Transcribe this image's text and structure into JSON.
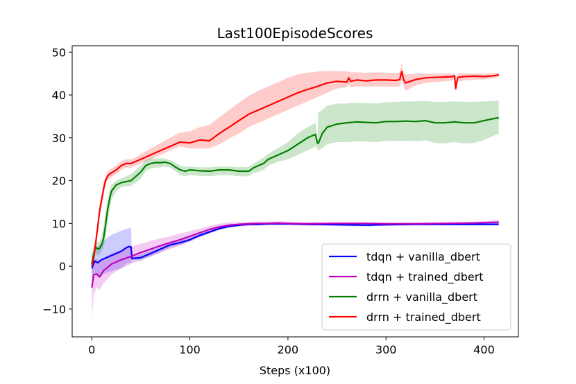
{
  "chart_data": {
    "type": "line",
    "title": "Last100EpisodeScores",
    "xlabel": "Steps (x100)",
    "ylabel": "",
    "xlim": [
      -20,
      435
    ],
    "ylim": [
      -16.5,
      51.5
    ],
    "xticks": [
      0,
      100,
      200,
      300,
      400
    ],
    "yticks": [
      -10,
      0,
      10,
      20,
      30,
      40,
      50
    ],
    "xtick_labels": [
      "0",
      "100",
      "200",
      "300",
      "400"
    ],
    "ytick_labels": [
      "−10",
      "0",
      "10",
      "20",
      "30",
      "40",
      "50"
    ],
    "legend_position": "lower-right",
    "series": [
      {
        "name": "tdqn + vanilla_dbert",
        "color": "#0000ff",
        "x": [
          0,
          3,
          6,
          10,
          15,
          20,
          25,
          30,
          35,
          38,
          40,
          41,
          45,
          50,
          60,
          70,
          80,
          90,
          100,
          110,
          120,
          130,
          140,
          150,
          155,
          160,
          170,
          180,
          190,
          200,
          220,
          250,
          280,
          300,
          330,
          360,
          390,
          415
        ],
        "values": [
          -0.5,
          1.2,
          0.8,
          1.5,
          2.0,
          2.5,
          3.0,
          3.5,
          4.3,
          4.6,
          4.5,
          1.8,
          1.9,
          2.0,
          3.0,
          4.0,
          5.0,
          5.5,
          6.2,
          7.2,
          8.0,
          8.8,
          9.3,
          9.6,
          9.7,
          9.8,
          9.8,
          9.9,
          9.9,
          9.9,
          9.8,
          9.7,
          9.6,
          9.7,
          9.8,
          9.8,
          9.8,
          9.8
        ],
        "upper": [
          2,
          4,
          4.5,
          5.5,
          6.5,
          7.3,
          7.8,
          8.3,
          8.7,
          8.9,
          8.9,
          2.2,
          2.4,
          2.8,
          3.6,
          4.6,
          5.5,
          6.0,
          6.7,
          7.6,
          8.4,
          9.1,
          9.6,
          9.9,
          10.0,
          10.1,
          10.1,
          10.2,
          10.2,
          10.2,
          10.1,
          10.0,
          9.9,
          10.0,
          10.1,
          10.1,
          10.1,
          10.1
        ],
        "lower": [
          -3,
          -1.5,
          -2.5,
          -2,
          -1.5,
          -1.2,
          -0.8,
          -0.5,
          0.5,
          0.8,
          0.8,
          1.4,
          1.4,
          1.3,
          2.3,
          3.3,
          4.4,
          5.0,
          5.7,
          6.8,
          7.6,
          8.5,
          9.0,
          9.3,
          9.4,
          9.5,
          9.5,
          9.6,
          9.6,
          9.6,
          9.5,
          9.4,
          9.3,
          9.4,
          9.5,
          9.5,
          9.5,
          9.5
        ]
      },
      {
        "name": "tdqn + trained_dbert",
        "color": "#bf00bf",
        "x": [
          0,
          2,
          5,
          8,
          12,
          16,
          20,
          25,
          30,
          40,
          50,
          60,
          70,
          80,
          90,
          100,
          110,
          120,
          130,
          140,
          150,
          160,
          170,
          180,
          190,
          200,
          220,
          250,
          280,
          300,
          330,
          360,
          390,
          415
        ],
        "values": [
          -5.0,
          -2.0,
          -1.8,
          -2.5,
          -1.0,
          -0.3,
          0.5,
          1.0,
          1.5,
          2.3,
          3.2,
          4.0,
          4.8,
          5.5,
          6.2,
          7.0,
          7.8,
          8.6,
          9.2,
          9.6,
          9.8,
          9.9,
          10.0,
          10.0,
          10.1,
          10.0,
          9.9,
          10.0,
          10.0,
          9.9,
          9.9,
          10.0,
          10.1,
          10.3
        ],
        "upper": [
          2.5,
          1.5,
          1.8,
          1.2,
          2.0,
          2.5,
          3.0,
          3.5,
          3.8,
          4.5,
          5.3,
          5.9,
          6.5,
          7.0,
          7.6,
          8.2,
          8.8,
          9.4,
          9.9,
          10.2,
          10.3,
          10.4,
          10.4,
          10.4,
          10.5,
          10.4,
          10.3,
          10.3,
          10.3,
          10.2,
          10.2,
          10.3,
          10.4,
          10.8
        ],
        "lower": [
          -12.5,
          -6.5,
          -5.0,
          -5.5,
          -4.0,
          -3.0,
          -2.0,
          -1.2,
          -0.5,
          0.5,
          1.5,
          2.3,
          3.2,
          4.0,
          4.8,
          5.8,
          6.8,
          7.8,
          8.5,
          9.0,
          9.3,
          9.4,
          9.6,
          9.6,
          9.7,
          9.6,
          9.5,
          9.7,
          9.7,
          9.6,
          9.6,
          9.7,
          9.8,
          9.9
        ]
      },
      {
        "name": "drrn + vanilla_dbert",
        "color": "#008000",
        "x": [
          0,
          2,
          4,
          6,
          8,
          10,
          12,
          14,
          16,
          18,
          20,
          25,
          30,
          40,
          45,
          50,
          55,
          60,
          65,
          70,
          75,
          80,
          85,
          90,
          95,
          100,
          110,
          120,
          130,
          140,
          150,
          160,
          165,
          170,
          175,
          180,
          190,
          200,
          210,
          220,
          228,
          230,
          231,
          235,
          240,
          250,
          260,
          270,
          280,
          290,
          300,
          310,
          320,
          330,
          340,
          350,
          360,
          370,
          380,
          390,
          400,
          410,
          415
        ],
        "values": [
          0.5,
          3.0,
          4.5,
          4.0,
          4.2,
          5.0,
          6.5,
          9.5,
          13.0,
          15.5,
          17.5,
          19.0,
          19.5,
          20.0,
          21.0,
          22.0,
          23.5,
          24.0,
          24.2,
          24.2,
          24.3,
          24.0,
          23.2,
          22.5,
          22.2,
          22.5,
          22.3,
          22.2,
          22.5,
          22.5,
          22.2,
          22.2,
          23.0,
          23.5,
          24.0,
          25.0,
          26.0,
          27.0,
          28.5,
          30.0,
          30.8,
          28.8,
          28.7,
          31.0,
          32.5,
          33.2,
          33.5,
          33.7,
          33.6,
          33.5,
          33.8,
          33.8,
          33.9,
          33.8,
          34.0,
          33.5,
          33.5,
          33.7,
          33.5,
          33.5,
          34.0,
          34.5,
          34.7
        ],
        "upper": [
          3.0,
          5.0,
          6.0,
          5.5,
          5.8,
          7.0,
          9.5,
          12.5,
          15.5,
          17.5,
          19.0,
          20.0,
          20.5,
          21.5,
          22.5,
          23.5,
          24.8,
          25.2,
          25.2,
          25.2,
          25.1,
          24.8,
          24.2,
          23.5,
          23.2,
          23.3,
          23.1,
          23.1,
          23.3,
          23.3,
          23.1,
          23.2,
          24.0,
          24.7,
          25.3,
          26.3,
          27.6,
          29.0,
          31.0,
          32.5,
          33.5,
          30.0,
          36.0,
          36.5,
          37.5,
          38.0,
          38.0,
          38.2,
          38.1,
          38.0,
          38.3,
          38.4,
          38.5,
          38.5,
          38.6,
          38.4,
          38.4,
          38.5,
          38.4,
          38.4,
          38.5,
          38.6,
          38.7
        ],
        "lower": [
          -1.5,
          1.0,
          3.0,
          2.5,
          2.8,
          3.5,
          4.5,
          6.5,
          10.0,
          13.0,
          15.5,
          17.5,
          18.5,
          18.8,
          19.5,
          20.5,
          22.2,
          22.8,
          23.0,
          23.1,
          23.3,
          23.0,
          22.2,
          21.3,
          21.0,
          21.3,
          21.1,
          21.0,
          21.3,
          21.3,
          21.0,
          21.0,
          21.8,
          22.0,
          22.5,
          23.5,
          24.4,
          25.0,
          26.0,
          27.0,
          28.0,
          27.5,
          27.0,
          27.5,
          28.5,
          29.0,
          29.0,
          29.2,
          29.1,
          29.0,
          29.3,
          29.3,
          29.3,
          29.2,
          29.4,
          28.8,
          28.7,
          29.0,
          28.7,
          28.8,
          29.5,
          30.5,
          31.0
        ]
      },
      {
        "name": "drrn + trained_dbert",
        "color": "#ff0000",
        "x": [
          0,
          2,
          4,
          6,
          8,
          10,
          12,
          14,
          16,
          18,
          20,
          25,
          30,
          35,
          40,
          45,
          50,
          60,
          70,
          80,
          90,
          100,
          110,
          120,
          130,
          140,
          150,
          160,
          170,
          180,
          190,
          200,
          210,
          220,
          230,
          240,
          250,
          260,
          262,
          264,
          270,
          280,
          290,
          300,
          310,
          314,
          316,
          318,
          320,
          330,
          340,
          350,
          360,
          368,
          370,
          371,
          373,
          375,
          380,
          390,
          400,
          410,
          415
        ],
        "values": [
          0.0,
          2.0,
          5.5,
          9.0,
          13.0,
          15.5,
          18.0,
          20.0,
          21.0,
          21.5,
          21.8,
          22.5,
          23.5,
          24.0,
          24.0,
          24.5,
          25.0,
          26.0,
          27.0,
          28.0,
          29.0,
          28.8,
          29.5,
          29.3,
          31.0,
          32.5,
          34.0,
          35.5,
          36.5,
          37.5,
          38.5,
          39.5,
          40.5,
          41.3,
          42.0,
          42.8,
          43.2,
          43.0,
          44.0,
          43.2,
          43.5,
          43.3,
          43.5,
          43.5,
          43.4,
          43.6,
          45.5,
          43.5,
          42.8,
          43.6,
          44.0,
          44.1,
          44.2,
          44.3,
          44.5,
          41.5,
          44.0,
          44.2,
          44.3,
          44.4,
          44.3,
          44.5,
          44.7
        ],
        "upper": [
          1.0,
          3.5,
          7.0,
          10.5,
          14.5,
          17.0,
          19.5,
          21.0,
          22.0,
          22.5,
          22.8,
          23.5,
          24.5,
          25.0,
          25.0,
          25.5,
          26.2,
          27.5,
          28.8,
          30.0,
          31.2,
          31.5,
          32.5,
          33.0,
          34.8,
          36.5,
          38.2,
          39.8,
          41.0,
          42.0,
          43.0,
          44.0,
          44.8,
          45.2,
          45.5,
          45.6,
          45.6,
          45.5,
          45.5,
          45.3,
          45.3,
          45.2,
          45.3,
          45.2,
          45.1,
          45.3,
          47.3,
          45.2,
          44.8,
          45.0,
          45.0,
          45.0,
          45.0,
          45.0,
          45.0,
          42.5,
          45.0,
          45.0,
          45.0,
          45.0,
          45.0,
          45.1,
          45.2
        ],
        "lower": [
          -1.0,
          0.5,
          4.0,
          7.5,
          11.5,
          14.0,
          16.5,
          19.0,
          20.0,
          20.5,
          20.8,
          21.5,
          22.5,
          23.0,
          23.0,
          23.5,
          24.0,
          25.0,
          26.0,
          27.0,
          28.0,
          27.5,
          27.5,
          27.5,
          28.5,
          29.8,
          31.0,
          32.5,
          33.5,
          34.5,
          35.5,
          36.5,
          37.5,
          38.5,
          39.5,
          40.5,
          41.5,
          41.8,
          42.5,
          41.8,
          42.0,
          42.0,
          42.0,
          42.0,
          41.9,
          42.0,
          43.5,
          42.0,
          41.0,
          42.2,
          42.8,
          43.0,
          43.2,
          43.4,
          43.6,
          40.5,
          43.0,
          43.2,
          43.4,
          43.6,
          43.6,
          43.9,
          44.2
        ]
      }
    ]
  }
}
